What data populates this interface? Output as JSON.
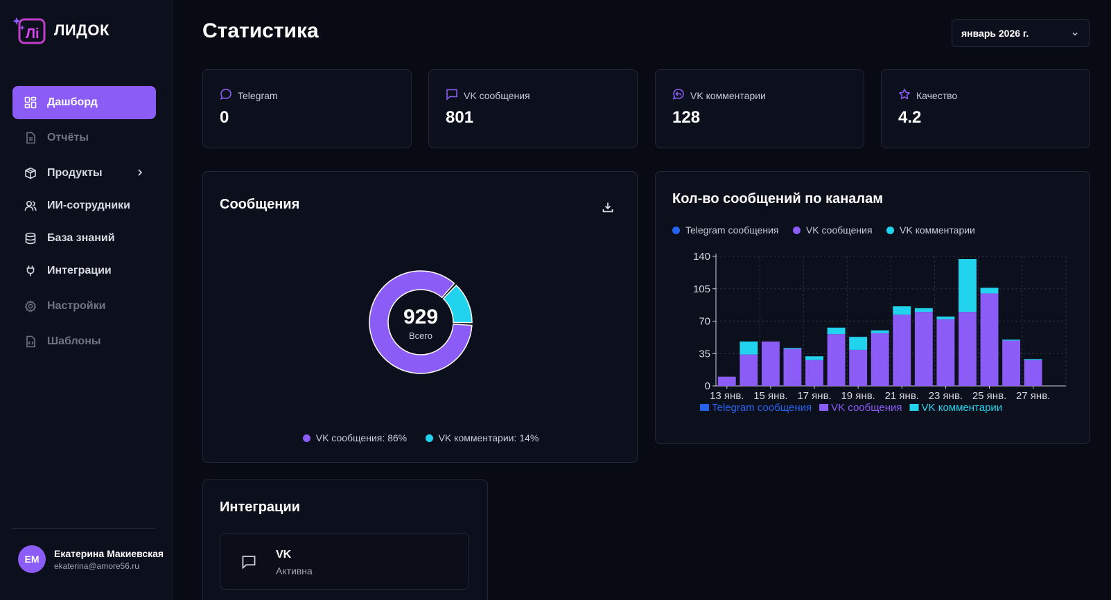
{
  "app": {
    "name": "ЛИДОК"
  },
  "sidebar": {
    "items": [
      {
        "label": "Дашборд",
        "icon": "dashboard-icon",
        "active": true
      },
      {
        "label": "Отчёты",
        "icon": "document-icon",
        "muted": true
      },
      {
        "label": "Продукты",
        "icon": "box-icon",
        "has_submenu": true
      },
      {
        "label": "ИИ-сотрудники",
        "icon": "users-icon"
      },
      {
        "label": "База знаний",
        "icon": "database-icon"
      },
      {
        "label": "Интеграции",
        "icon": "plug-icon"
      },
      {
        "label": "Настройки",
        "icon": "gear-icon",
        "muted": true
      },
      {
        "label": "Шаблоны",
        "icon": "template-icon",
        "muted": true
      }
    ]
  },
  "user": {
    "initials": "ЕМ",
    "name": "Екатерина Макиевская",
    "email": "ekaterina@amore56.ru"
  },
  "header": {
    "title": "Статистика",
    "month": "январь 2026 г."
  },
  "stats": [
    {
      "label": "Telegram",
      "value": "0",
      "icon": "chat-bubble-icon"
    },
    {
      "label": "VK сообщения",
      "value": "801",
      "icon": "message-square-icon"
    },
    {
      "label": "VK комментарии",
      "value": "128",
      "icon": "comment-reply-icon"
    },
    {
      "label": "Качество",
      "value": "4.2",
      "icon": "star-icon"
    }
  ],
  "messages_card": {
    "title": "Сообщения",
    "total": "929",
    "total_label": "Всего",
    "legend": [
      {
        "label": "VK сообщения: 86%",
        "color": "#8b5cf6"
      },
      {
        "label": "VK комментарии: 14%",
        "color": "#22d3ee"
      }
    ]
  },
  "channels_card": {
    "title": "Кол-во сообщений по каналам",
    "top_legend": [
      {
        "label": "Telegram сообщения",
        "color": "#2563eb"
      },
      {
        "label": "VK сообщения",
        "color": "#8b5cf6"
      },
      {
        "label": "VK комментарии",
        "color": "#22d3ee"
      }
    ]
  },
  "integrations_card": {
    "title": "Интеграции",
    "items": [
      {
        "name": "VK",
        "status": "Активна",
        "icon": "message-square-icon"
      }
    ]
  },
  "colors": {
    "accent": "#8b5cf6",
    "cyan": "#22d3ee",
    "blue": "#2563eb",
    "background": "#090b14",
    "card": "#0c0f1c"
  },
  "chart_data": [
    {
      "type": "pie",
      "title": "Сообщения",
      "categories": [
        "VK сообщения",
        "VK комментарии"
      ],
      "values": [
        801,
        128
      ],
      "percent": [
        86,
        14
      ],
      "colors": [
        "#8b5cf6",
        "#22d3ee"
      ],
      "center_value": "929",
      "center_label": "Всего"
    },
    {
      "type": "bar",
      "stacked": true,
      "title": "Кол-во сообщений по каналам",
      "categories": [
        "13 янв.",
        "14 янв.",
        "15 янв.",
        "16 янв.",
        "17 янв.",
        "18 янв.",
        "19 янв.",
        "20 янв.",
        "21 янв.",
        "22 янв.",
        "23 янв.",
        "24 янв.",
        "25 янв.",
        "26 янв.",
        "27 янв.",
        "28 янв."
      ],
      "tick_labels": [
        "13 янв.",
        "15 янв.",
        "17 янв.",
        "19 янв.",
        "21 янв.",
        "23 янв.",
        "25 янв.",
        "27 янв."
      ],
      "series": [
        {
          "name": "Telegram сообщения",
          "color": "#2563eb",
          "values": [
            0,
            0,
            0,
            0,
            0,
            0,
            0,
            0,
            0,
            0,
            0,
            0,
            0,
            0,
            0,
            0
          ]
        },
        {
          "name": "VK сообщения",
          "color": "#8b5cf6",
          "values": [
            10,
            34,
            48,
            40,
            28,
            56,
            39,
            57,
            77,
            80,
            72,
            80,
            100,
            49,
            28,
            0
          ]
        },
        {
          "name": "VK комментарии",
          "color": "#22d3ee",
          "values": [
            0,
            14,
            0,
            1,
            4,
            7,
            14,
            3,
            9,
            4,
            3,
            57,
            6,
            1,
            1,
            0
          ]
        }
      ],
      "ylim": [
        0,
        140
      ],
      "yticks": [
        0,
        35,
        70,
        105,
        140
      ],
      "grid": true,
      "legend_position": "bottom"
    }
  ]
}
